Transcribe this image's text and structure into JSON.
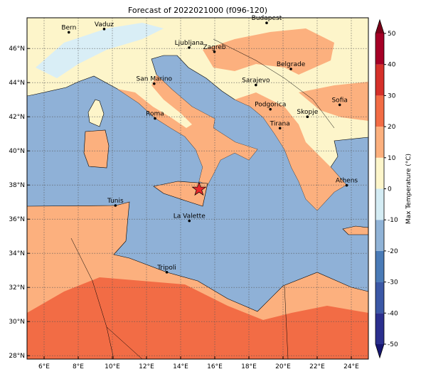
{
  "title": "Forecast of 2022021000 (f096-120)",
  "map": {
    "xlim": [
      5,
      25
    ],
    "ylim": [
      27.8,
      47.8
    ],
    "xticks": [
      {
        "value": 6,
        "label": "6°E"
      },
      {
        "value": 8,
        "label": "8°E"
      },
      {
        "value": 10,
        "label": "10°E"
      },
      {
        "value": 12,
        "label": "12°E"
      },
      {
        "value": 14,
        "label": "14°E"
      },
      {
        "value": 16,
        "label": "16°E"
      },
      {
        "value": 18,
        "label": "18°E"
      },
      {
        "value": 20,
        "label": "20°E"
      },
      {
        "value": 22,
        "label": "22°E"
      },
      {
        "value": 24,
        "label": "24°E"
      }
    ],
    "yticks": [
      {
        "value": 28,
        "label": "28°N"
      },
      {
        "value": 30,
        "label": "30°N"
      },
      {
        "value": 32,
        "label": "32°N"
      },
      {
        "value": 34,
        "label": "34°N"
      },
      {
        "value": 36,
        "label": "36°N"
      },
      {
        "value": 38,
        "label": "38°N"
      },
      {
        "value": 40,
        "label": "40°N"
      },
      {
        "value": 42,
        "label": "42°N"
      },
      {
        "value": 44,
        "label": "44°N"
      },
      {
        "value": 46,
        "label": "46°N"
      }
    ],
    "grid": true
  },
  "cities": [
    {
      "name": "Bern",
      "lon": 7.45,
      "lat": 46.95
    },
    {
      "name": "Vaduz",
      "lon": 9.52,
      "lat": 47.14
    },
    {
      "name": "Budapest",
      "lon": 19.04,
      "lat": 47.5
    },
    {
      "name": "Ljubljana",
      "lon": 14.5,
      "lat": 46.05
    },
    {
      "name": "Zagreb",
      "lon": 15.98,
      "lat": 45.81
    },
    {
      "name": "Belgrade",
      "lon": 20.46,
      "lat": 44.8
    },
    {
      "name": "San Marino",
      "lon": 12.45,
      "lat": 43.94
    },
    {
      "name": "Sarajevo",
      "lon": 18.41,
      "lat": 43.86
    },
    {
      "name": "Sofia",
      "lon": 23.32,
      "lat": 42.7
    },
    {
      "name": "Podgorica",
      "lon": 19.26,
      "lat": 42.44
    },
    {
      "name": "Skopje",
      "lon": 21.43,
      "lat": 42.0
    },
    {
      "name": "Roma",
      "lon": 12.5,
      "lat": 41.9
    },
    {
      "name": "Tirana",
      "lon": 19.82,
      "lat": 41.33
    },
    {
      "name": "Athens",
      "lon": 23.73,
      "lat": 37.98
    },
    {
      "name": "Tunis",
      "lon": 10.18,
      "lat": 36.8
    },
    {
      "name": "La Valette",
      "lon": 14.51,
      "lat": 35.9
    },
    {
      "name": "Tripoli",
      "lon": 13.19,
      "lat": 32.89
    }
  ],
  "star": {
    "lon": 15.08,
    "lat": 37.75,
    "color": "#e8282b"
  },
  "colorbar": {
    "label": "Max Temperature (°C)",
    "ticks": [
      -50,
      -40,
      -30,
      -20,
      -10,
      0,
      10,
      20,
      30,
      40,
      50
    ],
    "colors": [
      "#2b2f8e",
      "#3b58a6",
      "#4a7bb7",
      "#90b3d7",
      "#d4ecf4",
      "#fdf6cb",
      "#fcb07e",
      "#f26c45",
      "#d5302a",
      "#a50026"
    ],
    "under_color": "#161670",
    "over_color": "#7a0018"
  }
}
